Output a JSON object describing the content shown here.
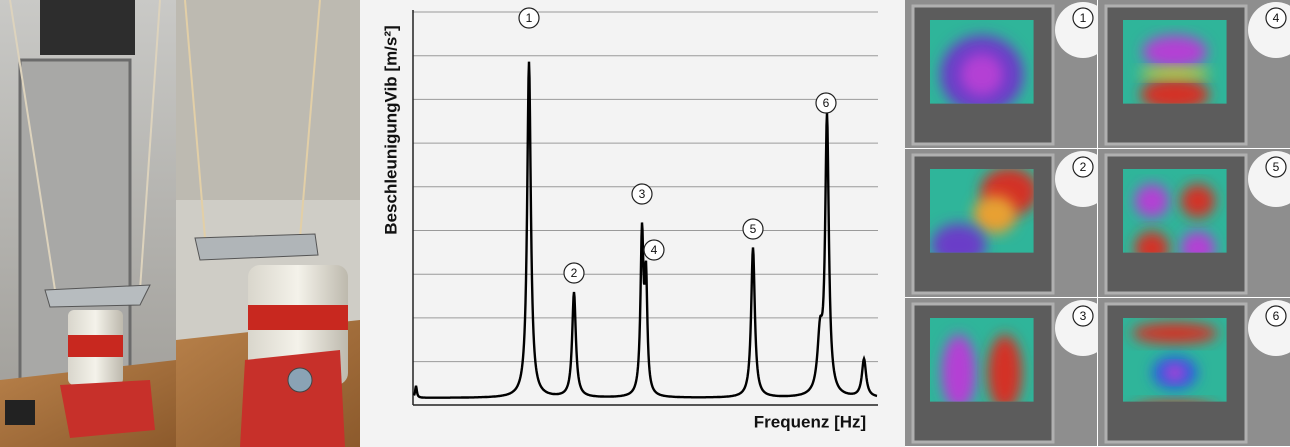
{
  "spectrum": {
    "y_label": "BeschleunigungVib [m/s²]",
    "x_label": "Frequenz [Hz]",
    "peak_labels": [
      "1",
      "2",
      "3",
      "4",
      "5",
      "6"
    ]
  },
  "mode_shapes": {
    "labels": [
      "1",
      "4",
      "2",
      "5",
      "3",
      "6"
    ]
  }
}
